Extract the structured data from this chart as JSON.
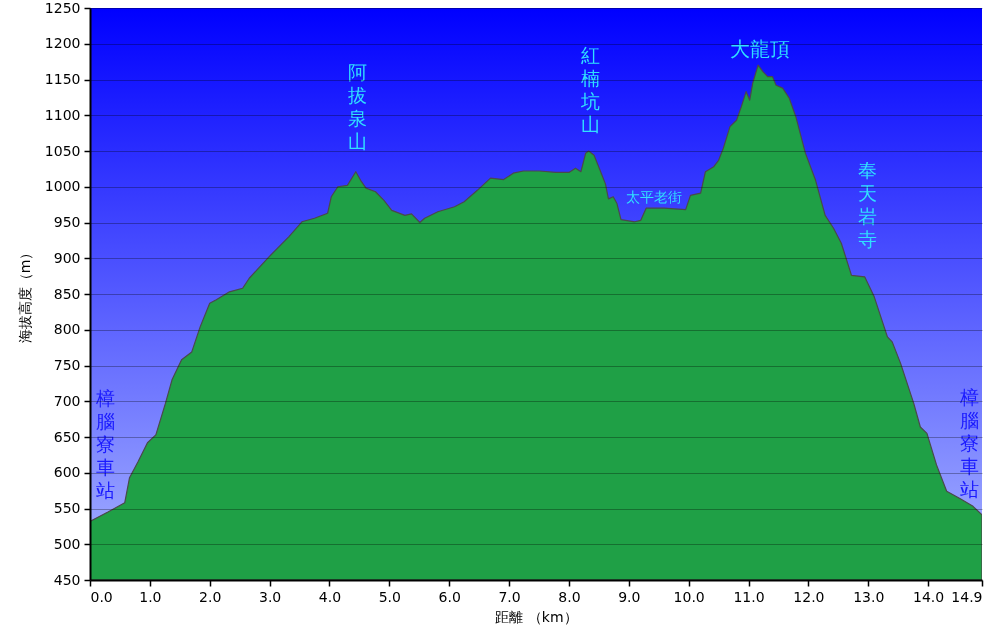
{
  "chart_data": {
    "type": "area",
    "xlabel": "距離 （km）",
    "ylabel": "海拔高度（m）",
    "color": "#1fa046",
    "x": [
      0,
      0.3,
      0.58,
      0.66,
      0.8,
      0.96,
      1.1,
      1.26,
      1.37,
      1.53,
      1.7,
      1.84,
      2.0,
      2.11,
      2.33,
      2.55,
      2.66,
      2.99,
      3.32,
      3.54,
      3.75,
      3.97,
      4.03,
      4.14,
      4.3,
      4.44,
      4.52,
      4.61,
      4.77,
      4.91,
      5.04,
      5.26,
      5.37,
      5.51,
      5.59,
      5.81,
      6.09,
      6.25,
      6.47,
      6.69,
      6.91,
      7.07,
      7.24,
      7.51,
      7.78,
      8.0,
      8.11,
      8.2,
      8.28,
      8.33,
      8.42,
      8.52,
      8.61,
      8.66,
      8.74,
      8.8,
      8.87,
      9.1,
      9.2,
      9.29,
      9.59,
      9.95,
      10.03,
      10.2,
      10.28,
      10.42,
      10.5,
      10.58,
      10.69,
      10.8,
      10.88,
      10.96,
      11.02,
      11.07,
      11.16,
      11.24,
      11.32,
      11.4,
      11.46,
      11.57,
      11.68,
      11.79,
      11.95,
      12.12,
      12.28,
      12.42,
      12.55,
      12.72,
      12.94,
      13.1,
      13.32,
      13.4,
      13.54,
      13.76,
      13.87,
      13.98,
      14.14,
      14.31,
      14.53,
      14.75,
      14.9
    ],
    "values": [
      532,
      545,
      558,
      593,
      615,
      642,
      653,
      697,
      730,
      758,
      769,
      804,
      837,
      842,
      853,
      858,
      872,
      902,
      930,
      951,
      956,
      963,
      986,
      1000,
      1002,
      1021,
      1009,
      998,
      993,
      981,
      967,
      960,
      962,
      950,
      956,
      965,
      972,
      979,
      995,
      1012,
      1010,
      1019,
      1022,
      1022,
      1020,
      1020,
      1026,
      1021,
      1047,
      1050,
      1044,
      1023,
      1004,
      983,
      986,
      977,
      954,
      951,
      953,
      970,
      970,
      968,
      988,
      991,
      1021,
      1028,
      1037,
      1054,
      1084,
      1093,
      1112,
      1133,
      1121,
      1145,
      1170,
      1161,
      1154,
      1154,
      1142,
      1138,
      1124,
      1098,
      1047,
      1009,
      960,
      942,
      921,
      876,
      874,
      846,
      790,
      783,
      753,
      697,
      664,
      655,
      611,
      574,
      564,
      553,
      541
    ],
    "xlim": [
      0,
      14.9
    ],
    "ylim": [
      450,
      1250
    ],
    "xticks": [
      {
        "value": 0,
        "label": "0.0"
      },
      {
        "value": 1,
        "label": "1.0"
      },
      {
        "value": 2,
        "label": "2.0"
      },
      {
        "value": 3,
        "label": "3.0"
      },
      {
        "value": 4,
        "label": "4.0"
      },
      {
        "value": 5,
        "label": "5.0"
      },
      {
        "value": 6,
        "label": "6.0"
      },
      {
        "value": 7,
        "label": "7.0"
      },
      {
        "value": 8,
        "label": "8.0"
      },
      {
        "value": 9,
        "label": "9.0"
      },
      {
        "value": 10,
        "label": "10.0"
      },
      {
        "value": 11,
        "label": "11.0"
      },
      {
        "value": 12,
        "label": "12.0"
      },
      {
        "value": 13,
        "label": "13.0"
      },
      {
        "value": 14,
        "label": "14.0"
      },
      14.9
    ],
    "yticks": [
      450,
      500,
      550,
      600,
      650,
      700,
      750,
      800,
      850,
      900,
      950,
      1000,
      1050,
      1100,
      1150,
      1200,
      1250
    ],
    "grid": "y",
    "annotations": [
      {
        "text": "樟腦寮車站",
        "x": 0,
        "y": 532
      },
      {
        "text": "阿拔泉山",
        "x": 4.44,
        "y": 1021
      },
      {
        "text": "紅楠坑山",
        "x": 8.33,
        "y": 1050
      },
      {
        "text": "太平老街",
        "x": 9.42,
        "y": 970
      },
      {
        "text": "大龍頂",
        "x": 11.16,
        "y": 1170
      },
      {
        "text": "奉天岩寺",
        "x": 12.83,
        "y": 875
      },
      {
        "text": "樟腦寮車站",
        "x": 14.9,
        "y": 541
      }
    ]
  }
}
